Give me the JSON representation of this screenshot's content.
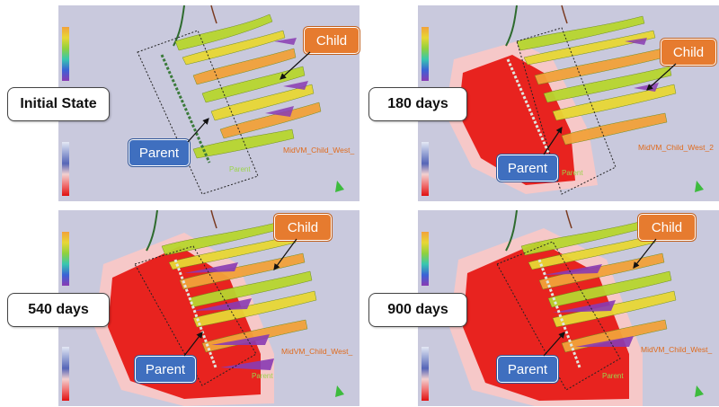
{
  "panels": [
    {
      "state": "Initial State",
      "child": "Child",
      "parent": "Parent",
      "well_child": "MidVM_Child_West_",
      "well_parent": "Parent"
    },
    {
      "state": "180 days",
      "child": "Child",
      "parent": "Parent",
      "well_child": "MidVM_Child_West_2",
      "well_parent": "Parent"
    },
    {
      "state": "540 days",
      "child": "Child",
      "parent": "Parent",
      "well_child": "MidVM_Child_West_",
      "well_parent": "Parent"
    },
    {
      "state": "900 days",
      "child": "Child",
      "parent": "Parent",
      "well_child": "MidVM_Child_West_",
      "well_parent": "Parent"
    }
  ],
  "colors": {
    "child_tag": "#e67b2f",
    "parent_tag": "#3f6fbf",
    "depletion": "#e8231f",
    "background": "#c9c9dd"
  }
}
